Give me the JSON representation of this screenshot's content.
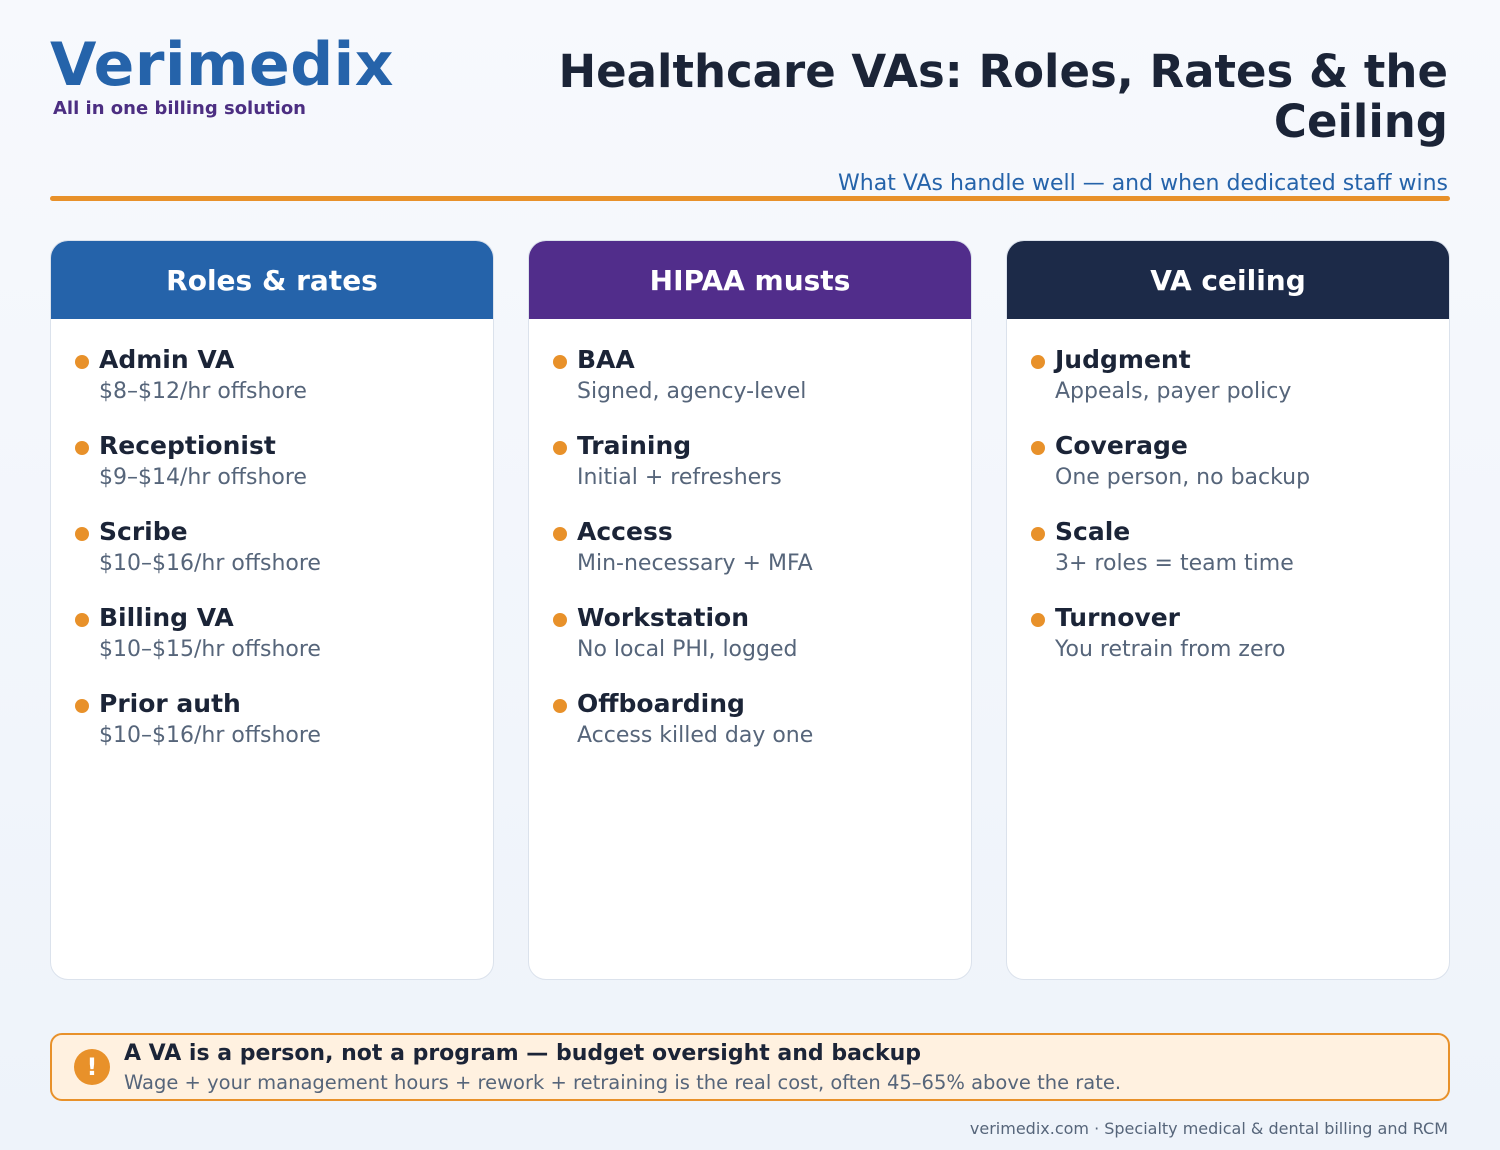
{
  "brand": {
    "name": "Verimedix",
    "tagline": "All in one billing solution",
    "color": "#2563aa"
  },
  "header": {
    "title": "Healthcare VAs: Roles, Rates & the Ceiling",
    "subtitle": "What VAs handle well — and when dedicated staff wins"
  },
  "accent_color": "#e8912a",
  "columns": [
    {
      "heading": "Roles & rates",
      "color": "#2563aa",
      "items": [
        {
          "title": "Admin VA",
          "desc": "$8–$12/hr offshore"
        },
        {
          "title": "Receptionist",
          "desc": "$9–$14/hr offshore"
        },
        {
          "title": "Scribe",
          "desc": "$10–$16/hr offshore"
        },
        {
          "title": "Billing VA",
          "desc": "$10–$15/hr offshore"
        },
        {
          "title": "Prior auth",
          "desc": "$10–$16/hr offshore"
        }
      ]
    },
    {
      "heading": "HIPAA musts",
      "color": "#512d8b",
      "items": [
        {
          "title": "BAA",
          "desc": "Signed, agency-level"
        },
        {
          "title": "Training",
          "desc": "Initial + refreshers"
        },
        {
          "title": "Access",
          "desc": "Min-necessary + MFA"
        },
        {
          "title": "Workstation",
          "desc": "No local PHI, logged"
        },
        {
          "title": "Offboarding",
          "desc": "Access killed day one"
        }
      ]
    },
    {
      "heading": "VA ceiling",
      "color": "#1c2a48",
      "items": [
        {
          "title": "Judgment",
          "desc": "Appeals, payer policy"
        },
        {
          "title": "Coverage",
          "desc": "One person, no backup"
        },
        {
          "title": "Scale",
          "desc": "3+ roles = team time"
        },
        {
          "title": "Turnover",
          "desc": "You retrain from zero"
        }
      ]
    }
  ],
  "callout": {
    "icon": "alert-icon",
    "symbol": "!",
    "title": "A VA is a person, not a program — budget oversight and backup",
    "text": "Wage + your management hours + rework + retraining is the real cost, often 45–65% above the rate."
  },
  "footer": "verimedix.com · Specialty medical & dental billing and RCM"
}
